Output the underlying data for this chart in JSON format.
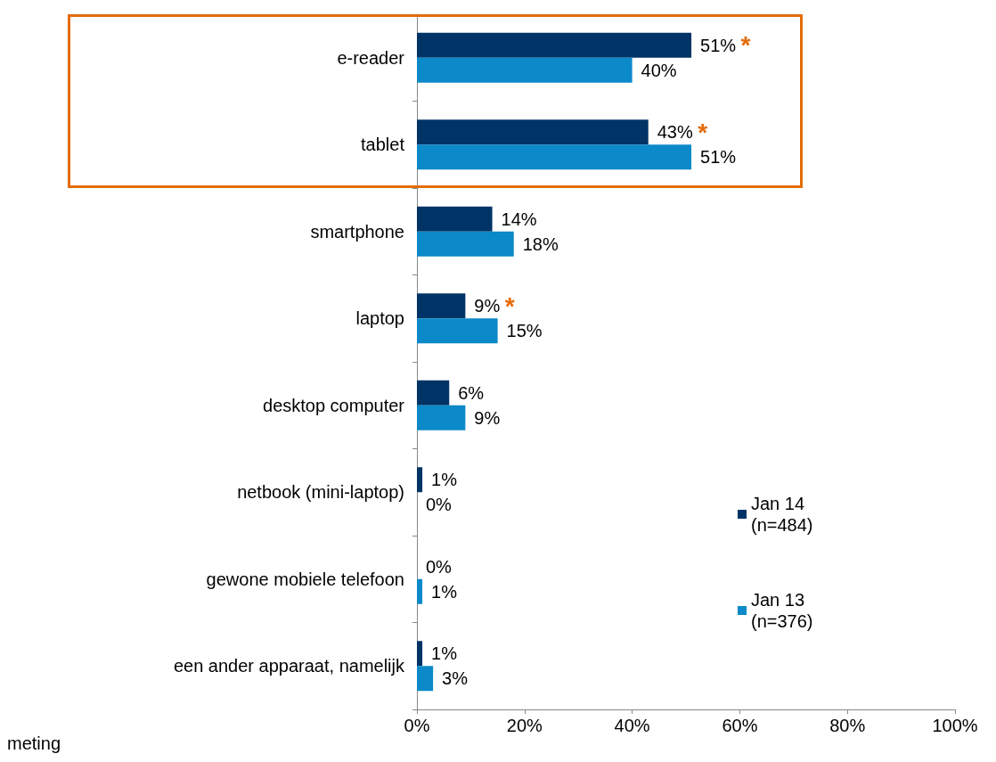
{
  "chart_data": {
    "type": "bar",
    "orientation": "horizontal",
    "categories": [
      "e-reader",
      "tablet",
      "smartphone",
      "laptop",
      "desktop computer",
      "netbook (mini-laptop)",
      "gewone mobiele telefoon",
      "een ander apparaat, namelijk"
    ],
    "series": [
      {
        "name": "Jan 14 (n=484)",
        "color": "#003366",
        "values": [
          51,
          43,
          14,
          9,
          6,
          1,
          0,
          1
        ],
        "value_labels": [
          "51%",
          "43%",
          "14%",
          "9%",
          "6%",
          "1%",
          "0%",
          "1%"
        ]
      },
      {
        "name": "Jan 13 (n=376)",
        "color": "#0b89c8",
        "values": [
          40,
          51,
          18,
          15,
          9,
          0,
          1,
          3
        ],
        "value_labels": [
          "40%",
          "51%",
          "18%",
          "15%",
          "9%",
          "0%",
          "1%",
          "3%"
        ]
      }
    ],
    "xlim": [
      0,
      100
    ],
    "xticks": [
      {
        "value": 0,
        "label": "0%"
      },
      {
        "value": 20,
        "label": "20%"
      },
      {
        "value": 40,
        "label": "40%"
      },
      {
        "value": 60,
        "label": "60%"
      },
      {
        "value": 80,
        "label": "80%"
      },
      {
        "value": 100,
        "label": "100%"
      }
    ],
    "annotations": [
      {
        "text": "*",
        "x": 51,
        "y": "e-reader"
      },
      {
        "text": "*",
        "x": 43,
        "y": "tablet"
      },
      {
        "text": "*",
        "x": 9,
        "y": "laptop"
      },
      "meting"
    ],
    "grid": false,
    "legend": "right"
  }
}
